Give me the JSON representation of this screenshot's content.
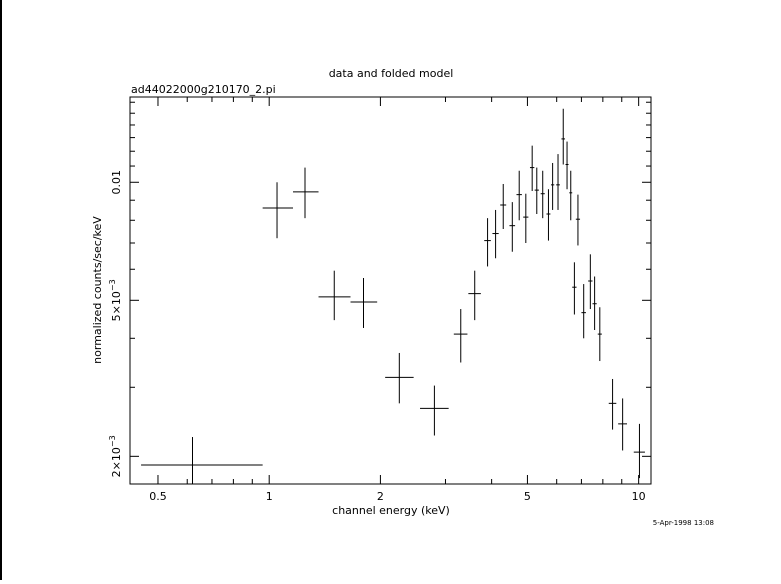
{
  "chart_data": {
    "type": "scatter",
    "title": "data and folded model",
    "subtitle": "ad44022000g210170_2.pi",
    "xlabel": "channel energy (keV)",
    "ylabel": "normalized counts/sec/keV",
    "x_scale": "log",
    "y_scale": "log",
    "xlim": [
      0.42,
      10.8
    ],
    "ylim": [
      0.0017,
      0.0165
    ],
    "x_ticks": [
      {
        "value": 0.5,
        "label": "0.5"
      },
      {
        "value": 1,
        "label": "1"
      },
      {
        "value": 2,
        "label": "2"
      },
      {
        "value": 5,
        "label": "5"
      },
      {
        "value": 10,
        "label": "10"
      }
    ],
    "y_ticks": [
      {
        "value": 0.002,
        "mant": "2×10",
        "exp": "−3"
      },
      {
        "value": 0.005,
        "mant": "5×10",
        "exp": "−3"
      },
      {
        "value": 0.01,
        "mant": "0.01",
        "exp": ""
      }
    ],
    "series": [
      {
        "points": [
          {
            "x": 0.62,
            "x_lo": 0.45,
            "x_hi": 0.96,
            "y": 0.0019,
            "y_lo": 0.0017,
            "y_hi": 0.00224
          },
          {
            "x": 1.05,
            "x_lo": 0.96,
            "x_hi": 1.16,
            "y": 0.0086,
            "y_lo": 0.0072,
            "y_hi": 0.01
          },
          {
            "x": 1.25,
            "x_lo": 1.16,
            "x_hi": 1.36,
            "y": 0.00945,
            "y_lo": 0.0081,
            "y_hi": 0.0109
          },
          {
            "x": 1.5,
            "x_lo": 1.36,
            "x_hi": 1.66,
            "y": 0.0051,
            "y_lo": 0.00445,
            "y_hi": 0.00595
          },
          {
            "x": 1.8,
            "x_lo": 1.66,
            "x_hi": 1.96,
            "y": 0.00495,
            "y_lo": 0.00425,
            "y_hi": 0.0057
          },
          {
            "x": 2.25,
            "x_lo": 2.06,
            "x_hi": 2.46,
            "y": 0.00318,
            "y_lo": 0.00273,
            "y_hi": 0.00367
          },
          {
            "x": 2.8,
            "x_lo": 2.56,
            "x_hi": 3.06,
            "y": 0.00265,
            "y_lo": 0.00226,
            "y_hi": 0.00303
          },
          {
            "x": 3.3,
            "x_lo": 3.16,
            "x_hi": 3.44,
            "y": 0.0041,
            "y_lo": 0.00347,
            "y_hi": 0.00475
          },
          {
            "x": 3.6,
            "x_lo": 3.46,
            "x_hi": 3.74,
            "y": 0.0052,
            "y_lo": 0.00445,
            "y_hi": 0.00595
          },
          {
            "x": 3.9,
            "x_lo": 3.82,
            "x_hi": 3.98,
            "y": 0.0071,
            "y_lo": 0.0061,
            "y_hi": 0.0081
          },
          {
            "x": 4.1,
            "x_lo": 4.02,
            "x_hi": 4.18,
            "y": 0.0074,
            "y_lo": 0.0064,
            "y_hi": 0.0085
          },
          {
            "x": 4.3,
            "x_lo": 4.22,
            "x_hi": 4.38,
            "y": 0.00875,
            "y_lo": 0.0076,
            "y_hi": 0.0099
          },
          {
            "x": 4.55,
            "x_lo": 4.47,
            "x_hi": 4.63,
            "y": 0.00775,
            "y_lo": 0.00665,
            "y_hi": 0.0089
          },
          {
            "x": 4.75,
            "x_lo": 4.67,
            "x_hi": 4.83,
            "y": 0.0093,
            "y_lo": 0.008,
            "y_hi": 0.0107
          },
          {
            "x": 4.95,
            "x_lo": 4.87,
            "x_hi": 5.03,
            "y": 0.00815,
            "y_lo": 0.007,
            "y_hi": 0.00935
          },
          {
            "x": 5.15,
            "x_lo": 5.08,
            "x_hi": 5.22,
            "y": 0.0109,
            "y_lo": 0.0095,
            "y_hi": 0.0124
          },
          {
            "x": 5.3,
            "x_lo": 5.23,
            "x_hi": 5.37,
            "y": 0.00955,
            "y_lo": 0.0083,
            "y_hi": 0.0109
          },
          {
            "x": 5.5,
            "x_lo": 5.43,
            "x_hi": 5.57,
            "y": 0.00935,
            "y_lo": 0.0081,
            "y_hi": 0.0107
          },
          {
            "x": 5.7,
            "x_lo": 5.63,
            "x_hi": 5.77,
            "y": 0.0083,
            "y_lo": 0.0071,
            "y_hi": 0.0096
          },
          {
            "x": 5.85,
            "x_lo": 5.79,
            "x_hi": 5.91,
            "y": 0.00985,
            "y_lo": 0.0085,
            "y_hi": 0.0112
          },
          {
            "x": 6.05,
            "x_lo": 5.98,
            "x_hi": 6.12,
            "y": 0.00985,
            "y_lo": 0.0085,
            "y_hi": 0.0118
          },
          {
            "x": 6.25,
            "x_lo": 6.18,
            "x_hi": 6.32,
            "y": 0.0129,
            "y_lo": 0.0111,
            "y_hi": 0.0154
          },
          {
            "x": 6.4,
            "x_lo": 6.34,
            "x_hi": 6.46,
            "y": 0.0111,
            "y_lo": 0.0096,
            "y_hi": 0.0127
          },
          {
            "x": 6.55,
            "x_lo": 6.49,
            "x_hi": 6.61,
            "y": 0.0094,
            "y_lo": 0.008,
            "y_hi": 0.0107
          },
          {
            "x": 6.85,
            "x_lo": 6.76,
            "x_hi": 6.94,
            "y": 0.00805,
            "y_lo": 0.0069,
            "y_hi": 0.0093
          },
          {
            "x": 6.7,
            "x_lo": 6.61,
            "x_hi": 6.79,
            "y": 0.0054,
            "y_lo": 0.0046,
            "y_hi": 0.00625
          },
          {
            "x": 7.1,
            "x_lo": 7.0,
            "x_hi": 7.2,
            "y": 0.00465,
            "y_lo": 0.004,
            "y_hi": 0.0055
          },
          {
            "x": 7.4,
            "x_lo": 7.3,
            "x_hi": 7.5,
            "y": 0.0056,
            "y_lo": 0.00475,
            "y_hi": 0.00655
          },
          {
            "x": 7.6,
            "x_lo": 7.5,
            "x_hi": 7.7,
            "y": 0.0049,
            "y_lo": 0.0042,
            "y_hi": 0.00575
          },
          {
            "x": 7.85,
            "x_lo": 7.75,
            "x_hi": 7.95,
            "y": 0.0041,
            "y_lo": 0.0035,
            "y_hi": 0.0048
          },
          {
            "x": 8.5,
            "x_lo": 8.3,
            "x_hi": 8.7,
            "y": 0.00273,
            "y_lo": 0.00234,
            "y_hi": 0.00315
          },
          {
            "x": 9.05,
            "x_lo": 8.8,
            "x_hi": 9.3,
            "y": 0.00242,
            "y_lo": 0.00207,
            "y_hi": 0.00281
          },
          {
            "x": 10.05,
            "x_lo": 9.7,
            "x_hi": 10.4,
            "y": 0.00205,
            "y_lo": 0.00176,
            "y_hi": 0.00242
          }
        ]
      }
    ]
  },
  "timestamp": "5-Apr-1998 13:08"
}
